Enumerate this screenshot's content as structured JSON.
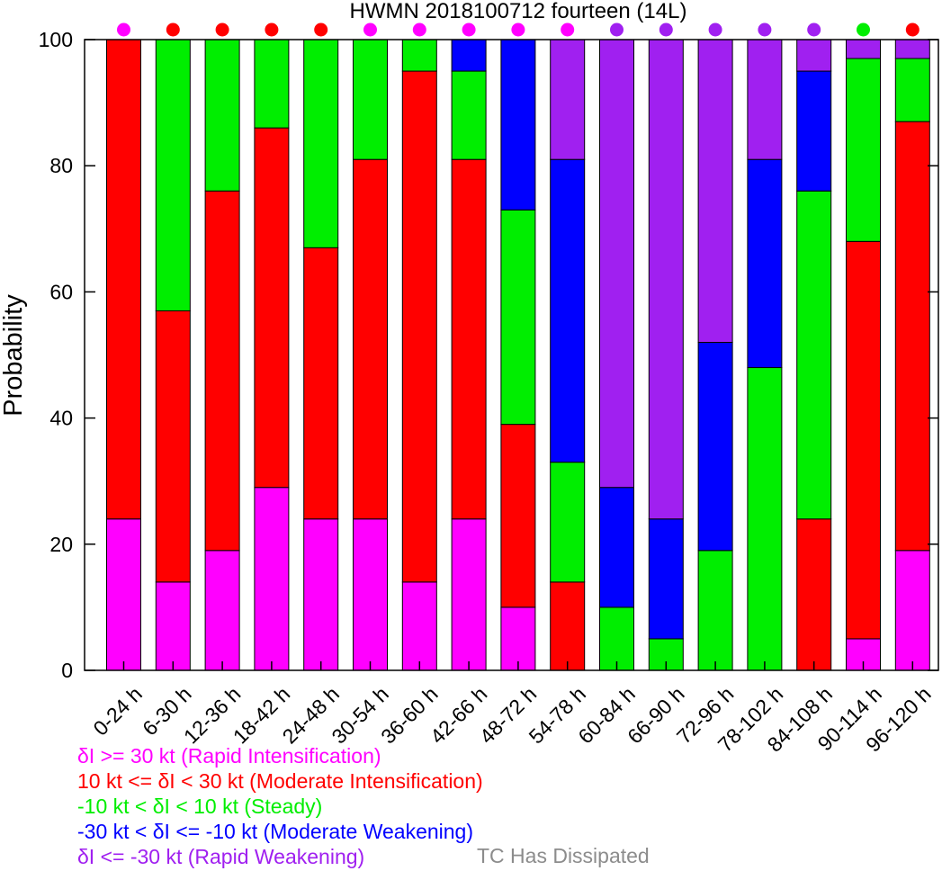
{
  "chart_data": {
    "type": "bar",
    "stacked": true,
    "title": "HWMN 2018100712 fourteen (14L)",
    "ylabel": "Probability",
    "xlabel": "",
    "ylim": [
      0,
      100
    ],
    "yticks": [
      "0",
      "20",
      "40",
      "60",
      "80",
      "100"
    ],
    "ytick_values": [
      0,
      20,
      40,
      60,
      80,
      100
    ],
    "categories": [
      "0-24 h",
      "6-30 h",
      "12-36 h",
      "18-42 h",
      "24-48 h",
      "30-54 h",
      "36-60 h",
      "42-66 h",
      "48-72 h",
      "54-78 h",
      "60-84 h",
      "66-90 h",
      "72-96 h",
      "78-102 h",
      "84-108 h",
      "90-114 h",
      "96-120 h"
    ],
    "series": [
      {
        "key": "ri",
        "color": "#ff00ff",
        "values": [
          24,
          14,
          19,
          29,
          24,
          24,
          14,
          24,
          10,
          0,
          0,
          0,
          0,
          0,
          0,
          5,
          19
        ]
      },
      {
        "key": "mi",
        "color": "#ff0000",
        "values": [
          76,
          43,
          57,
          57,
          43,
          57,
          81,
          57,
          29,
          14,
          0,
          0,
          0,
          0,
          24,
          63,
          68
        ]
      },
      {
        "key": "st",
        "color": "#00ee00",
        "values": [
          0,
          43,
          24,
          14,
          33,
          19,
          5,
          14,
          34,
          19,
          10,
          5,
          19,
          48,
          52,
          29,
          10
        ]
      },
      {
        "key": "mw",
        "color": "#0000ff",
        "values": [
          0,
          0,
          0,
          0,
          0,
          0,
          0,
          5,
          27,
          48,
          19,
          19,
          33,
          33,
          19,
          0,
          0
        ]
      },
      {
        "key": "rw",
        "color": "#a020f0",
        "values": [
          0,
          0,
          0,
          0,
          0,
          0,
          0,
          0,
          0,
          19,
          71,
          76,
          48,
          19,
          5,
          3,
          3
        ]
      }
    ],
    "top_markers": [
      "#ff00ff",
      "#ff0000",
      "#ff0000",
      "#ff0000",
      "#ff0000",
      "#ff00ff",
      "#ff00ff",
      "#ff00ff",
      "#ff00ff",
      "#ff00ff",
      "#a020f0",
      "#a020f0",
      "#a020f0",
      "#a020f0",
      "#a020f0",
      "#00ee00",
      "#ff0000"
    ],
    "grid": false,
    "legend_position": "bottom-left"
  },
  "legend": {
    "items": [
      {
        "label": "δI >= 30 kt (Rapid Intensification)",
        "color": "#ff00ff"
      },
      {
        "label": "10 kt <= δI < 30 kt (Moderate Intensification)",
        "color": "#ff0000"
      },
      {
        "label": "-10 kt < δI < 10 kt (Steady)",
        "color": "#00ee00"
      },
      {
        "label": "-30 kt < δI <= -10 kt (Moderate Weakening)",
        "color": "#0000ff"
      },
      {
        "label": "δI <= -30 kt (Rapid Weakening)",
        "color": "#a020f0"
      }
    ],
    "dissipated_label": "TC Has Dissipated",
    "dissipated_color": "#8c8c8c"
  }
}
